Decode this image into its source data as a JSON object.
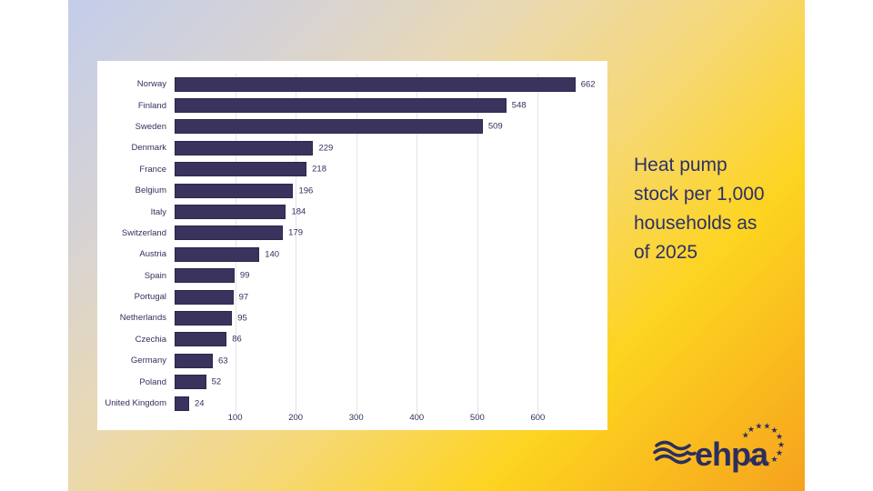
{
  "slide": {
    "caption": "Heat pump stock per 1,000 households as of 2025",
    "colors": {
      "bar": "#39335E",
      "chart_text": "#33305C",
      "caption_text": "#2D3167",
      "panel_bg": "#FFFFFF",
      "grid_line": "#E4E4E8",
      "bg_top_left": "#C3CDEA",
      "bg_mid_gold": "#F6D878",
      "bg_yellow": "#FDD41F",
      "bg_bottom_right": "#F6A21E",
      "logo_navy": "#2B2E5F"
    }
  },
  "chart_data": {
    "type": "bar",
    "orientation": "horizontal",
    "title": "Heat pump stock per 1,000 households as of 2025",
    "categories": [
      "Norway",
      "Finland",
      "Sweden",
      "Denmark",
      "France",
      "Belgium",
      "Italy",
      "Switzerland",
      "Austria",
      "Spain",
      "Portugal",
      "Netherlands",
      "Czechia",
      "Germany",
      "Poland",
      "United Kingdom"
    ],
    "values": [
      662,
      548,
      509,
      229,
      218,
      196,
      184,
      179,
      140,
      99,
      97,
      95,
      86,
      63,
      52,
      24
    ],
    "xlabel": "",
    "ylabel": "",
    "xlim": [
      0,
      700
    ],
    "xticks": [
      100,
      200,
      300,
      400,
      500,
      600
    ],
    "grid": true,
    "value_labels": true,
    "legend": false
  },
  "logo": {
    "text": "ehpa",
    "waves_icon": "three-waves",
    "stars_icon": "eu-stars-arc"
  }
}
